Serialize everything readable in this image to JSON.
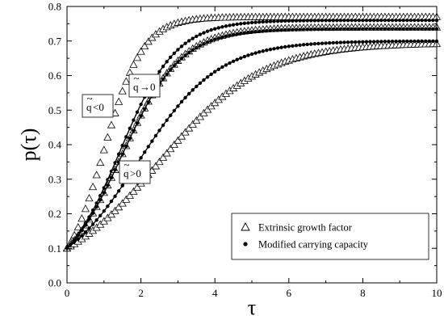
{
  "chart_data": {
    "type": "scatter",
    "xlabel": "τ",
    "ylabel": "p(τ)",
    "xlim": [
      0,
      10
    ],
    "ylim": [
      0,
      0.8
    ],
    "xticks": [
      "0",
      "2",
      "4",
      "6",
      "8",
      "10"
    ],
    "yticks": [
      "0.0",
      "0.1",
      "0.2",
      "0.3",
      "0.4",
      "0.5",
      "0.6",
      "0.7",
      "0.8"
    ],
    "grid": false,
    "legend_position": "bottom-right",
    "legend": [
      {
        "label": "Extrinsic growth factor",
        "marker": "open-triangle"
      },
      {
        "label": "Modified carrying capacity",
        "marker": "filled-circle"
      }
    ],
    "annotations": [
      {
        "base": "q",
        "mark": "~",
        "rest": "<0"
      },
      {
        "base": "q",
        "mark": "~",
        "rest": "→0"
      },
      {
        "base": "q",
        "mark": "~",
        "rest": ">0"
      }
    ],
    "curves": [
      {
        "group": "q<0",
        "p0": 0.1,
        "K_triangle": 0.77,
        "r_triangle": 1.9,
        "K_circle": 0.76,
        "r_circle": 1.32
      },
      {
        "group": "q→0",
        "p0": 0.1,
        "K_triangle": 0.74,
        "r_triangle": 1.25,
        "K_circle": 0.735,
        "r_circle": 1.25
      },
      {
        "group": "q>0",
        "p0": 0.1,
        "K_triangle": 0.695,
        "r_triangle": 0.72,
        "K_circle": 0.7,
        "r_circle": 0.93
      }
    ],
    "x_step": 0.1
  }
}
